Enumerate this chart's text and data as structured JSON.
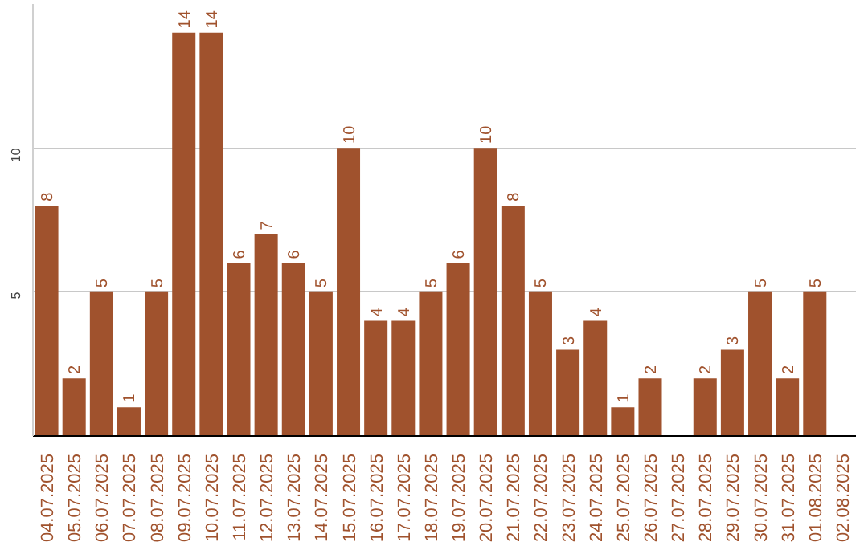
{
  "chart_data": {
    "type": "bar",
    "categories": [
      "04.07.2025",
      "05.07.2025",
      "06.07.2025",
      "07.07.2025",
      "08.07.2025",
      "09.07.2025",
      "10.07.2025",
      "11.07.2025",
      "12.07.2025",
      "13.07.2025",
      "14.07.2025",
      "15.07.2025",
      "16.07.2025",
      "17.07.2025",
      "18.07.2025",
      "19.07.2025",
      "20.07.2025",
      "21.07.2025",
      "22.07.2025",
      "23.07.2025",
      "24.07.2025",
      "25.07.2025",
      "26.07.2025",
      "27.07.2025",
      "28.07.2025",
      "29.07.2025",
      "30.07.2025",
      "31.07.2025",
      "01.08.2025",
      "02.08.2025"
    ],
    "values": [
      8,
      2,
      5,
      1,
      5,
      14,
      14,
      6,
      7,
      6,
      5,
      10,
      4,
      4,
      5,
      6,
      10,
      8,
      5,
      3,
      4,
      1,
      2,
      null,
      2,
      3,
      5,
      2,
      5,
      null
    ],
    "color": "#a0522d",
    "ylim": [
      0,
      15
    ],
    "yticks": [
      5,
      10
    ],
    "grid": "y",
    "data_labels": true
  }
}
